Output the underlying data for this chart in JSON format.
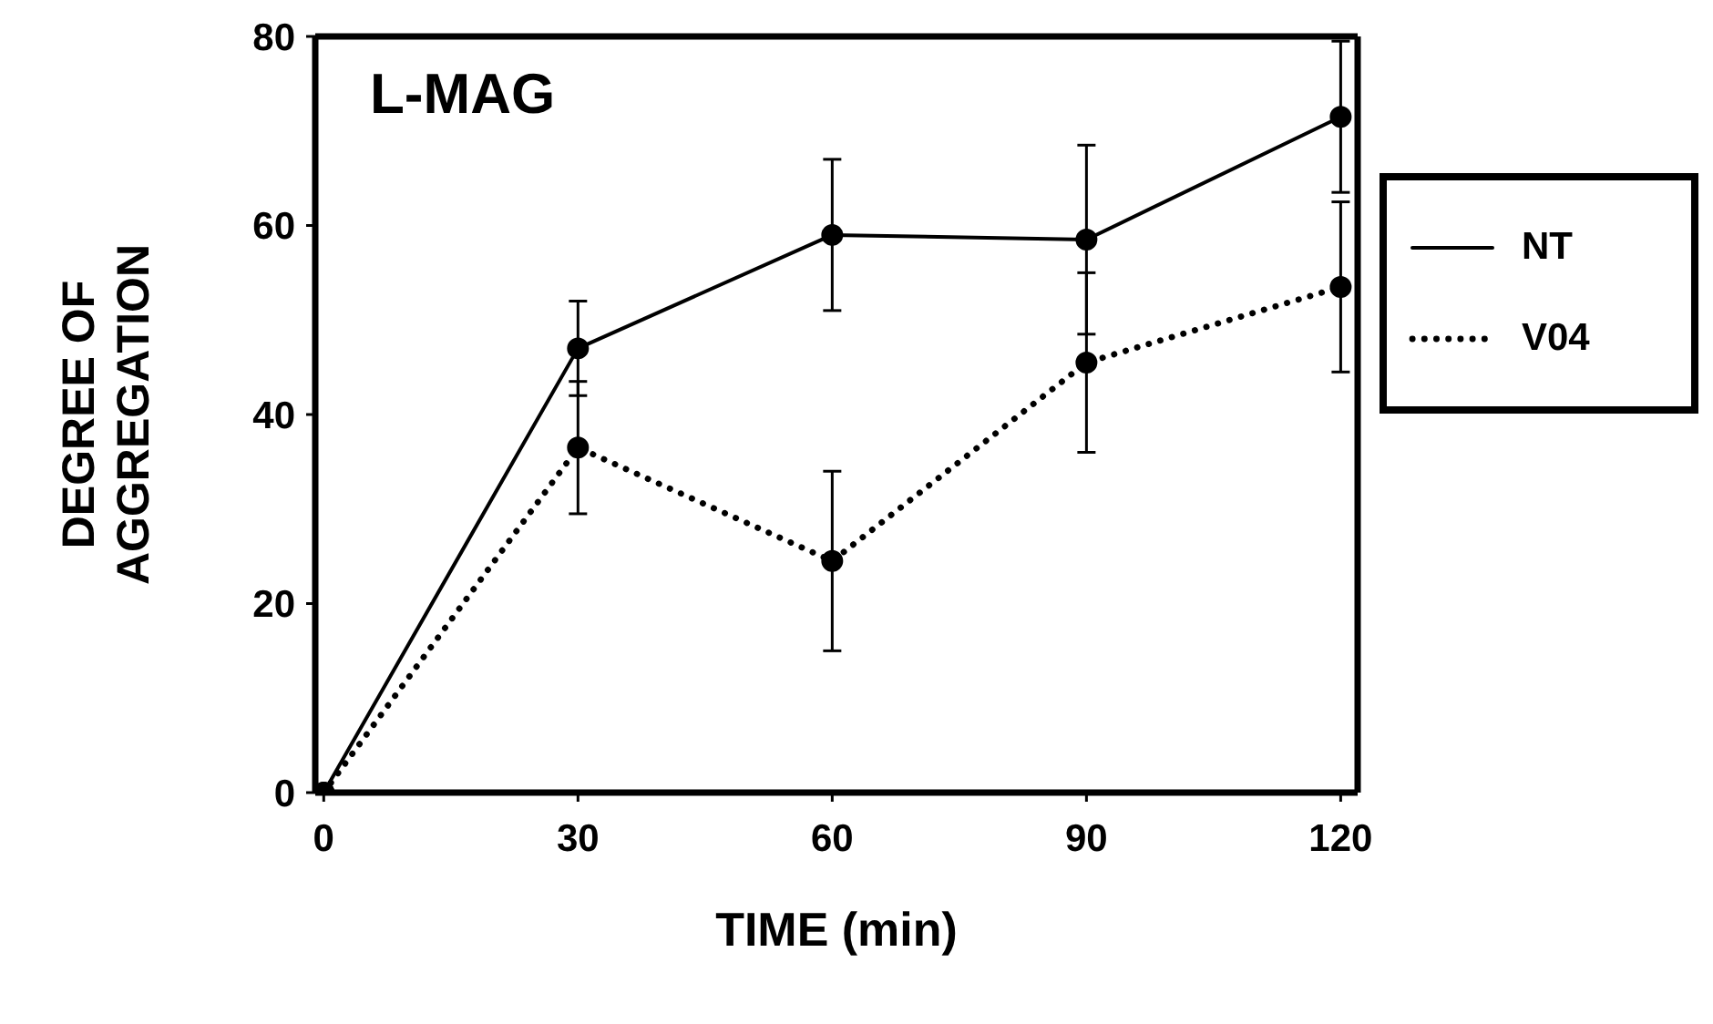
{
  "chart_data": {
    "type": "line",
    "xlabel": "TIME (min)",
    "ylabel": "DEGREE OF\nAGGREGATION",
    "annotations": [
      "L-MAG"
    ],
    "x": [
      0,
      30,
      60,
      90,
      120
    ],
    "series": [
      {
        "name": "NT",
        "color": "#000000",
        "line_style": "solid",
        "values": [
          0,
          47,
          59,
          58.5,
          71.5
        ],
        "errors": [
          null,
          5,
          8,
          10,
          8
        ]
      },
      {
        "name": "V04",
        "color": "#000000",
        "line_style": "dotted",
        "values": [
          0,
          36.5,
          24.5,
          45.5,
          53.5
        ],
        "errors": [
          null,
          7,
          9.5,
          9.5,
          9
        ]
      }
    ],
    "xlim": [
      -1,
      122
    ],
    "xticks": [
      0,
      30,
      60,
      90,
      120
    ],
    "ylim": [
      0,
      80
    ],
    "yticks": [
      0,
      20,
      40,
      60,
      80
    ],
    "marker": "circle",
    "legend": "right",
    "grid": false
  }
}
